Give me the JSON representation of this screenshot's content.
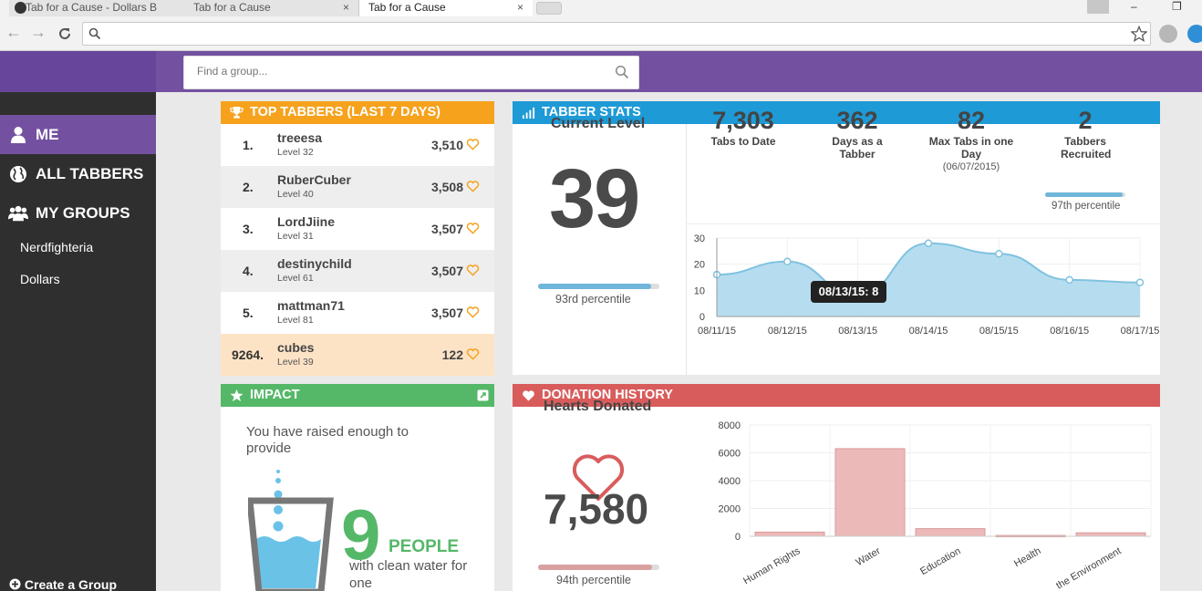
{
  "browser": {
    "tabs": [
      {
        "title": "Tab for a Cause - Dollars B",
        "active": false
      },
      {
        "title": "Tab for a Cause",
        "active": false
      },
      {
        "title": "Tab for a Cause",
        "active": true
      }
    ],
    "close_glyph": "×",
    "window_buttons": [
      "–",
      "❐"
    ],
    "url": ""
  },
  "search": {
    "placeholder": "Find a group..."
  },
  "sidebar": {
    "nav": [
      {
        "label": "ME",
        "icon": "user-icon",
        "active": true
      },
      {
        "label": "ALL TABBERS",
        "icon": "globe-icon",
        "active": false
      },
      {
        "label": "MY GROUPS",
        "icon": "group-icon",
        "active": false
      }
    ],
    "groups": [
      "Nerdfighteria",
      "Dollars"
    ],
    "create_label": "Create a Group"
  },
  "top_tabbers": {
    "title": "TOP TABBERS (LAST 7 DAYS)",
    "color": "#f6a21d",
    "rows": [
      {
        "rank": "1.",
        "name": "treeesa",
        "level": "Level 32",
        "score": "3,510"
      },
      {
        "rank": "2.",
        "name": "RuberCuber",
        "level": "Level 40",
        "score": "3,508"
      },
      {
        "rank": "3.",
        "name": "LordJiine",
        "level": "Level 31",
        "score": "3,507"
      },
      {
        "rank": "4.",
        "name": "destinychild",
        "level": "Level 61",
        "score": "3,507"
      },
      {
        "rank": "5.",
        "name": "mattman71",
        "level": "Level 81",
        "score": "3,507"
      },
      {
        "rank": "9264.",
        "name": "cubes",
        "level": "Level 39",
        "score": "122"
      }
    ]
  },
  "tabber_stats": {
    "title": "TABBER STATS",
    "color": "#1e9ad6",
    "current_level_label": "Current Level",
    "current_level": "39",
    "level_percentile": 0.93,
    "level_percentile_label": "93rd percentile",
    "stats": [
      {
        "value": "7,303",
        "label": "Tabs to Date",
        "sub": ""
      },
      {
        "value": "362",
        "label": "Days as a Tabber",
        "sub": ""
      },
      {
        "value": "82",
        "label": "Max Tabs in one Day",
        "sub": "(06/07/2015)"
      },
      {
        "value": "2",
        "label": "Tabbers Recruited",
        "sub": ""
      }
    ],
    "recruit_percentile": 0.97,
    "recruit_percentile_label": "97th percentile",
    "tooltip": "08/13/15: 8"
  },
  "impact": {
    "title": "IMPACT",
    "color": "#55b868",
    "text": "You have raised enough to provide",
    "number": "9",
    "unit": "PEOPLE",
    "sub": "with clean water for one"
  },
  "donation_history": {
    "title": "DONATION HISTORY",
    "color": "#d95c5c",
    "hearts_label": "Hearts Donated",
    "hearts": "7,580",
    "percentile": 0.94,
    "percentile_label": "94th percentile"
  },
  "chart_data": [
    {
      "type": "area",
      "x": [
        "08/11/15",
        "08/12/15",
        "08/13/15",
        "08/14/15",
        "08/15/15",
        "08/16/15",
        "08/17/15"
      ],
      "values": [
        16,
        21,
        8,
        28,
        24,
        14,
        13
      ],
      "ylim": [
        0,
        30
      ],
      "yticks": [
        0,
        10,
        20,
        30
      ],
      "grid": true,
      "color": "#a9d7ec"
    },
    {
      "type": "bar",
      "categories": [
        "Human Rights",
        "Water",
        "Education",
        "Health",
        "the Environment"
      ],
      "values": [
        300,
        6300,
        550,
        60,
        250
      ],
      "ylim": [
        0,
        8000
      ],
      "yticks": [
        0,
        2000,
        4000,
        6000,
        8000
      ],
      "grid": true,
      "color": "#ecb9b9"
    }
  ]
}
